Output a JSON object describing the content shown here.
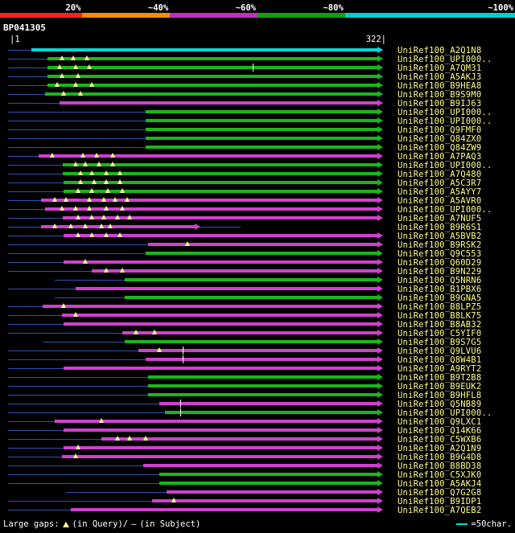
{
  "legend": {
    "segments": [
      {
        "color": "#ff2020",
        "width": 16,
        "label": "20%"
      },
      {
        "color": "#ff8c00",
        "width": 17,
        "label": "~40%"
      },
      {
        "color": "#c030c0",
        "width": 17,
        "label": "~60%"
      },
      {
        "color": "#10a010",
        "width": 17,
        "label": "~80%"
      },
      {
        "color": "#00d0d0",
        "width": 33,
        "label": "~100%"
      }
    ]
  },
  "title": "BP041305",
  "ruler": {
    "start": "|1",
    "end": "322|"
  },
  "chart": {
    "x_max": 322,
    "query_color": "#3050b0",
    "colors": {
      "green": "#18b818",
      "magenta": "#d040d0",
      "cyan": "#00d8d8"
    },
    "rows": [
      {
        "label": "UniRef100_A2Q1N8",
        "q": [
          0,
          322
        ],
        "seg": [
          {
            "s": 20,
            "e": 322,
            "c": "cyan",
            "arr": "r"
          }
        ],
        "gq": []
      },
      {
        "label": "UniRef100_UPI000..",
        "q": [
          0,
          322
        ],
        "seg": [
          {
            "s": 34,
            "e": 322,
            "c": "green",
            "arr": "r"
          }
        ],
        "gq": [
          46,
          56,
          68
        ]
      },
      {
        "label": "UniRef100_A7QM31",
        "q": [
          0,
          322
        ],
        "seg": [
          {
            "s": 34,
            "e": 322,
            "c": "green",
            "arr": "r"
          }
        ],
        "gq": [
          44,
          58,
          70
        ],
        "gs": [
          210
        ]
      },
      {
        "label": "UniRef100_A5AKJ3",
        "q": [
          0,
          322
        ],
        "seg": [
          {
            "s": 34,
            "e": 322,
            "c": "green",
            "arr": "r"
          }
        ],
        "gq": [
          46,
          60
        ]
      },
      {
        "label": "UniRef100_B9HEA8",
        "q": [
          0,
          322
        ],
        "seg": [
          {
            "s": 34,
            "e": 322,
            "c": "green",
            "arr": "r"
          }
        ],
        "gq": [
          42,
          58,
          72
        ]
      },
      {
        "label": "UniRef100_B9S9M0",
        "q": [
          0,
          322
        ],
        "seg": [
          {
            "s": 32,
            "e": 322,
            "c": "green",
            "arr": "r"
          }
        ],
        "gq": [
          48,
          62
        ]
      },
      {
        "label": "UniRef100_B9IJ63",
        "q": [
          0,
          322
        ],
        "seg": [
          {
            "s": 44,
            "e": 322,
            "c": "magenta",
            "arr": "r"
          }
        ],
        "gq": []
      },
      {
        "label": "UniRef100_UPI000..",
        "q": [
          0,
          280
        ],
        "seg": [
          {
            "s": 118,
            "e": 322,
            "c": "green",
            "arr": "r"
          }
        ],
        "gq": []
      },
      {
        "label": "UniRef100_UPI000..",
        "q": [
          0,
          280
        ],
        "seg": [
          {
            "s": 118,
            "e": 322,
            "c": "green",
            "arr": "r"
          }
        ],
        "gq": []
      },
      {
        "label": "UniRef100_Q9FMF0",
        "q": [
          0,
          280
        ],
        "seg": [
          {
            "s": 118,
            "e": 322,
            "c": "green",
            "arr": "r"
          }
        ],
        "gq": []
      },
      {
        "label": "UniRef100_Q84ZX0",
        "q": [
          0,
          280
        ],
        "seg": [
          {
            "s": 118,
            "e": 322,
            "c": "green",
            "arr": "r"
          }
        ],
        "gq": []
      },
      {
        "label": "UniRef100_Q84ZW9",
        "q": [
          0,
          280
        ],
        "seg": [
          {
            "s": 118,
            "e": 322,
            "c": "green",
            "arr": "r"
          }
        ],
        "gq": []
      },
      {
        "label": "UniRef100_A7PAQ3",
        "q": [
          0,
          312
        ],
        "seg": [
          {
            "s": 26,
            "e": 322,
            "c": "magenta",
            "arr": "r"
          }
        ],
        "gq": [
          38,
          64,
          76,
          90
        ]
      },
      {
        "label": "UniRef100_UPI000..",
        "q": [
          0,
          312
        ],
        "seg": [
          {
            "s": 47,
            "e": 322,
            "c": "green",
            "arr": "r"
          }
        ],
        "gq": [
          58,
          66,
          78,
          90
        ]
      },
      {
        "label": "UniRef100_A7Q480",
        "q": [
          0,
          312
        ],
        "seg": [
          {
            "s": 47,
            "e": 322,
            "c": "green",
            "arr": "r"
          }
        ],
        "gq": [
          62,
          72,
          84,
          96
        ]
      },
      {
        "label": "UniRef100_A5C3R7",
        "q": [
          0,
          312
        ],
        "seg": [
          {
            "s": 48,
            "e": 322,
            "c": "green",
            "arr": "r"
          }
        ],
        "gq": [
          62,
          74,
          84,
          96
        ]
      },
      {
        "label": "UniRef100_A5AYY7",
        "q": [
          0,
          312
        ],
        "seg": [
          {
            "s": 48,
            "e": 322,
            "c": "green",
            "arr": "r"
          }
        ],
        "gq": [
          60,
          72,
          86,
          98
        ]
      },
      {
        "label": "UniRef100_A5AVR0",
        "q": [
          0,
          312
        ],
        "seg": [
          {
            "s": 28,
            "e": 322,
            "c": "magenta",
            "arr": "r"
          }
        ],
        "gq": [
          40,
          50,
          70,
          82,
          92,
          102
        ]
      },
      {
        "label": "UniRef100_UPI000..",
        "q": [
          0,
          312
        ],
        "seg": [
          {
            "s": 32,
            "e": 322,
            "c": "magenta",
            "arr": "r"
          }
        ],
        "gq": [
          46,
          58,
          70,
          84,
          98
        ]
      },
      {
        "label": "UniRef100_A7NUF5",
        "q": [
          0,
          312
        ],
        "seg": [
          {
            "s": 47,
            "e": 322,
            "c": "magenta",
            "arr": "r"
          }
        ],
        "gq": [
          60,
          72,
          82,
          94,
          104
        ]
      },
      {
        "label": "UniRef100_B9R6S1",
        "q": [
          0,
          200
        ],
        "seg": [
          {
            "s": 28,
            "e": 165,
            "c": "magenta",
            "arr": "r"
          }
        ],
        "gq": [
          40,
          54,
          66,
          80,
          88
        ]
      },
      {
        "label": "UniRef100_A5BVB2",
        "q": [
          0,
          312
        ],
        "seg": [
          {
            "s": 48,
            "e": 322,
            "c": "magenta",
            "arr": "r"
          }
        ],
        "gq": [
          60,
          72,
          84,
          96
        ]
      },
      {
        "label": "UniRef100_B9RSK2",
        "q": [
          0,
          312
        ],
        "seg": [
          {
            "s": 120,
            "e": 322,
            "c": "magenta",
            "arr": "r"
          }
        ],
        "gq": [
          154
        ]
      },
      {
        "label": "UniRef100_Q9C553",
        "q": [
          0,
          180
        ],
        "seg": [
          {
            "s": 118,
            "e": 322,
            "c": "green",
            "arr": "r"
          }
        ],
        "gq": []
      },
      {
        "label": "UniRef100_Q60D29",
        "q": [
          0,
          312
        ],
        "seg": [
          {
            "s": 48,
            "e": 322,
            "c": "magenta",
            "arr": "r"
          }
        ],
        "gq": [
          66
        ]
      },
      {
        "label": "UniRef100_B9N229",
        "q": [
          0,
          312
        ],
        "seg": [
          {
            "s": 72,
            "e": 322,
            "c": "magenta",
            "arr": "r"
          }
        ],
        "gq": [
          84,
          98
        ]
      },
      {
        "label": "UniRef100_Q5NRN6",
        "q": [
          40,
          312
        ],
        "seg": [
          {
            "s": 100,
            "e": 322,
            "c": "green",
            "arr": "r"
          }
        ],
        "gq": []
      },
      {
        "label": "UniRef100_B1PBX6",
        "q": [
          0,
          312
        ],
        "seg": [
          {
            "s": 58,
            "e": 322,
            "c": "magenta",
            "arr": "r"
          }
        ],
        "gq": []
      },
      {
        "label": "UniRef100_B9GNA5",
        "q": [
          40,
          312
        ],
        "seg": [
          {
            "s": 100,
            "e": 322,
            "c": "green",
            "arr": "r"
          }
        ],
        "gq": []
      },
      {
        "label": "UniRef100_B8LPZ5",
        "q": [
          0,
          312
        ],
        "seg": [
          {
            "s": 30,
            "e": 322,
            "c": "magenta",
            "arr": "r"
          }
        ],
        "gq": [
          48
        ]
      },
      {
        "label": "UniRef100_B8LK75",
        "q": [
          0,
          312
        ],
        "seg": [
          {
            "s": 46,
            "e": 322,
            "c": "magenta",
            "arr": "r"
          }
        ],
        "gq": [
          58
        ]
      },
      {
        "label": "UniRef100_B8AB32",
        "q": [
          0,
          312
        ],
        "seg": [
          {
            "s": 48,
            "e": 322,
            "c": "magenta",
            "arr": "r"
          }
        ],
        "gq": []
      },
      {
        "label": "UniRef100_C5YIF0",
        "q": [
          0,
          312
        ],
        "seg": [
          {
            "s": 98,
            "e": 322,
            "c": "magenta",
            "arr": "r"
          }
        ],
        "gq": [
          110,
          126
        ]
      },
      {
        "label": "UniRef100_B9S7G5",
        "q": [
          30,
          312
        ],
        "seg": [
          {
            "s": 100,
            "e": 322,
            "c": "green",
            "arr": "r"
          }
        ],
        "gq": []
      },
      {
        "label": "UniRef100_Q9LVU6",
        "q": [
          0,
          312
        ],
        "seg": [
          {
            "s": 112,
            "e": 322,
            "c": "magenta",
            "arr": "r"
          }
        ],
        "gq": [
          130
        ],
        "gs": [
          150
        ]
      },
      {
        "label": "UniRef100_Q8W4B1",
        "q": [
          0,
          312
        ],
        "seg": [
          {
            "s": 118,
            "e": 322,
            "c": "magenta",
            "arr": "r"
          }
        ],
        "gq": [],
        "gs": [
          150
        ]
      },
      {
        "label": "UniRef100_A9RYT2",
        "q": [
          0,
          312
        ],
        "seg": [
          {
            "s": 48,
            "e": 322,
            "c": "magenta",
            "arr": "r"
          }
        ],
        "gq": []
      },
      {
        "label": "UniRef100_B9T2B8",
        "q": [
          0,
          312
        ],
        "seg": [
          {
            "s": 120,
            "e": 322,
            "c": "green",
            "arr": "r"
          }
        ],
        "gq": []
      },
      {
        "label": "UniRef100_B9EUK2",
        "q": [
          0,
          312
        ],
        "seg": [
          {
            "s": 120,
            "e": 322,
            "c": "green",
            "arr": "r"
          }
        ],
        "gq": []
      },
      {
        "label": "UniRef100_B9HFL8",
        "q": [
          0,
          312
        ],
        "seg": [
          {
            "s": 120,
            "e": 322,
            "c": "green",
            "arr": "r"
          }
        ],
        "gq": []
      },
      {
        "label": "UniRef100_Q5NB89",
        "q": [
          0,
          312
        ],
        "seg": [
          {
            "s": 130,
            "e": 322,
            "c": "magenta",
            "arr": "r"
          }
        ],
        "gq": [],
        "gs": [
          148
        ]
      },
      {
        "label": "UniRef100_UPI000..",
        "q": [
          0,
          312
        ],
        "seg": [
          {
            "s": 135,
            "e": 322,
            "c": "green",
            "arr": "r"
          }
        ],
        "gq": [],
        "gs": [
          148
        ]
      },
      {
        "label": "UniRef100_Q9LXC1",
        "q": [
          0,
          312
        ],
        "seg": [
          {
            "s": 40,
            "e": 322,
            "c": "magenta",
            "arr": "r"
          }
        ],
        "gq": [
          80
        ]
      },
      {
        "label": "UniRef100_Q14K66",
        "q": [
          0,
          312
        ],
        "seg": [
          {
            "s": 48,
            "e": 322,
            "c": "magenta",
            "arr": "r"
          }
        ],
        "gq": []
      },
      {
        "label": "UniRef100_C5WXB6",
        "q": [
          0,
          312
        ],
        "seg": [
          {
            "s": 80,
            "e": 322,
            "c": "magenta",
            "arr": "r"
          }
        ],
        "gq": [
          94,
          104,
          118
        ]
      },
      {
        "label": "UniRef100_A2Q1N9",
        "q": [
          0,
          312
        ],
        "seg": [
          {
            "s": 48,
            "e": 322,
            "c": "magenta",
            "arr": "r"
          }
        ],
        "gq": [
          60
        ]
      },
      {
        "label": "UniRef100_B9G4D8",
        "q": [
          0,
          312
        ],
        "seg": [
          {
            "s": 46,
            "e": 322,
            "c": "magenta",
            "arr": "r"
          }
        ],
        "gq": [
          58
        ]
      },
      {
        "label": "UniRef100_B8BD38",
        "q": [
          0,
          312
        ],
        "seg": [
          {
            "s": 116,
            "e": 322,
            "c": "magenta",
            "arr": "r"
          }
        ],
        "gq": []
      },
      {
        "label": "UniRef100_C5XJK0",
        "q": [
          0,
          312
        ],
        "seg": [
          {
            "s": 130,
            "e": 322,
            "c": "green",
            "arr": "r"
          }
        ],
        "gq": []
      },
      {
        "label": "UniRef100_A5AKJ4",
        "q": [
          0,
          312
        ],
        "seg": [
          {
            "s": 130,
            "e": 322,
            "c": "green",
            "arr": "r"
          }
        ],
        "gq": []
      },
      {
        "label": "UniRef100_Q7G2G8",
        "q": [
          50,
          312
        ],
        "seg": [
          {
            "s": 136,
            "e": 322,
            "c": "magenta",
            "arr": "r"
          }
        ],
        "gq": []
      },
      {
        "label": "UniRef100_B9IDP1",
        "q": [
          0,
          312
        ],
        "seg": [
          {
            "s": 124,
            "e": 322,
            "c": "magenta",
            "arr": "r"
          }
        ],
        "gq": [
          142
        ]
      },
      {
        "label": "UniRef100_A7QEB2",
        "q": [
          0,
          312
        ],
        "seg": [
          {
            "s": 54,
            "e": 322,
            "c": "magenta",
            "arr": "r"
          }
        ],
        "gq": []
      }
    ]
  },
  "footer": {
    "text_a": "Large gaps: ",
    "text_b": "(in Query)/",
    "text_c": "(in Subject)",
    "text_d": "=50char."
  }
}
